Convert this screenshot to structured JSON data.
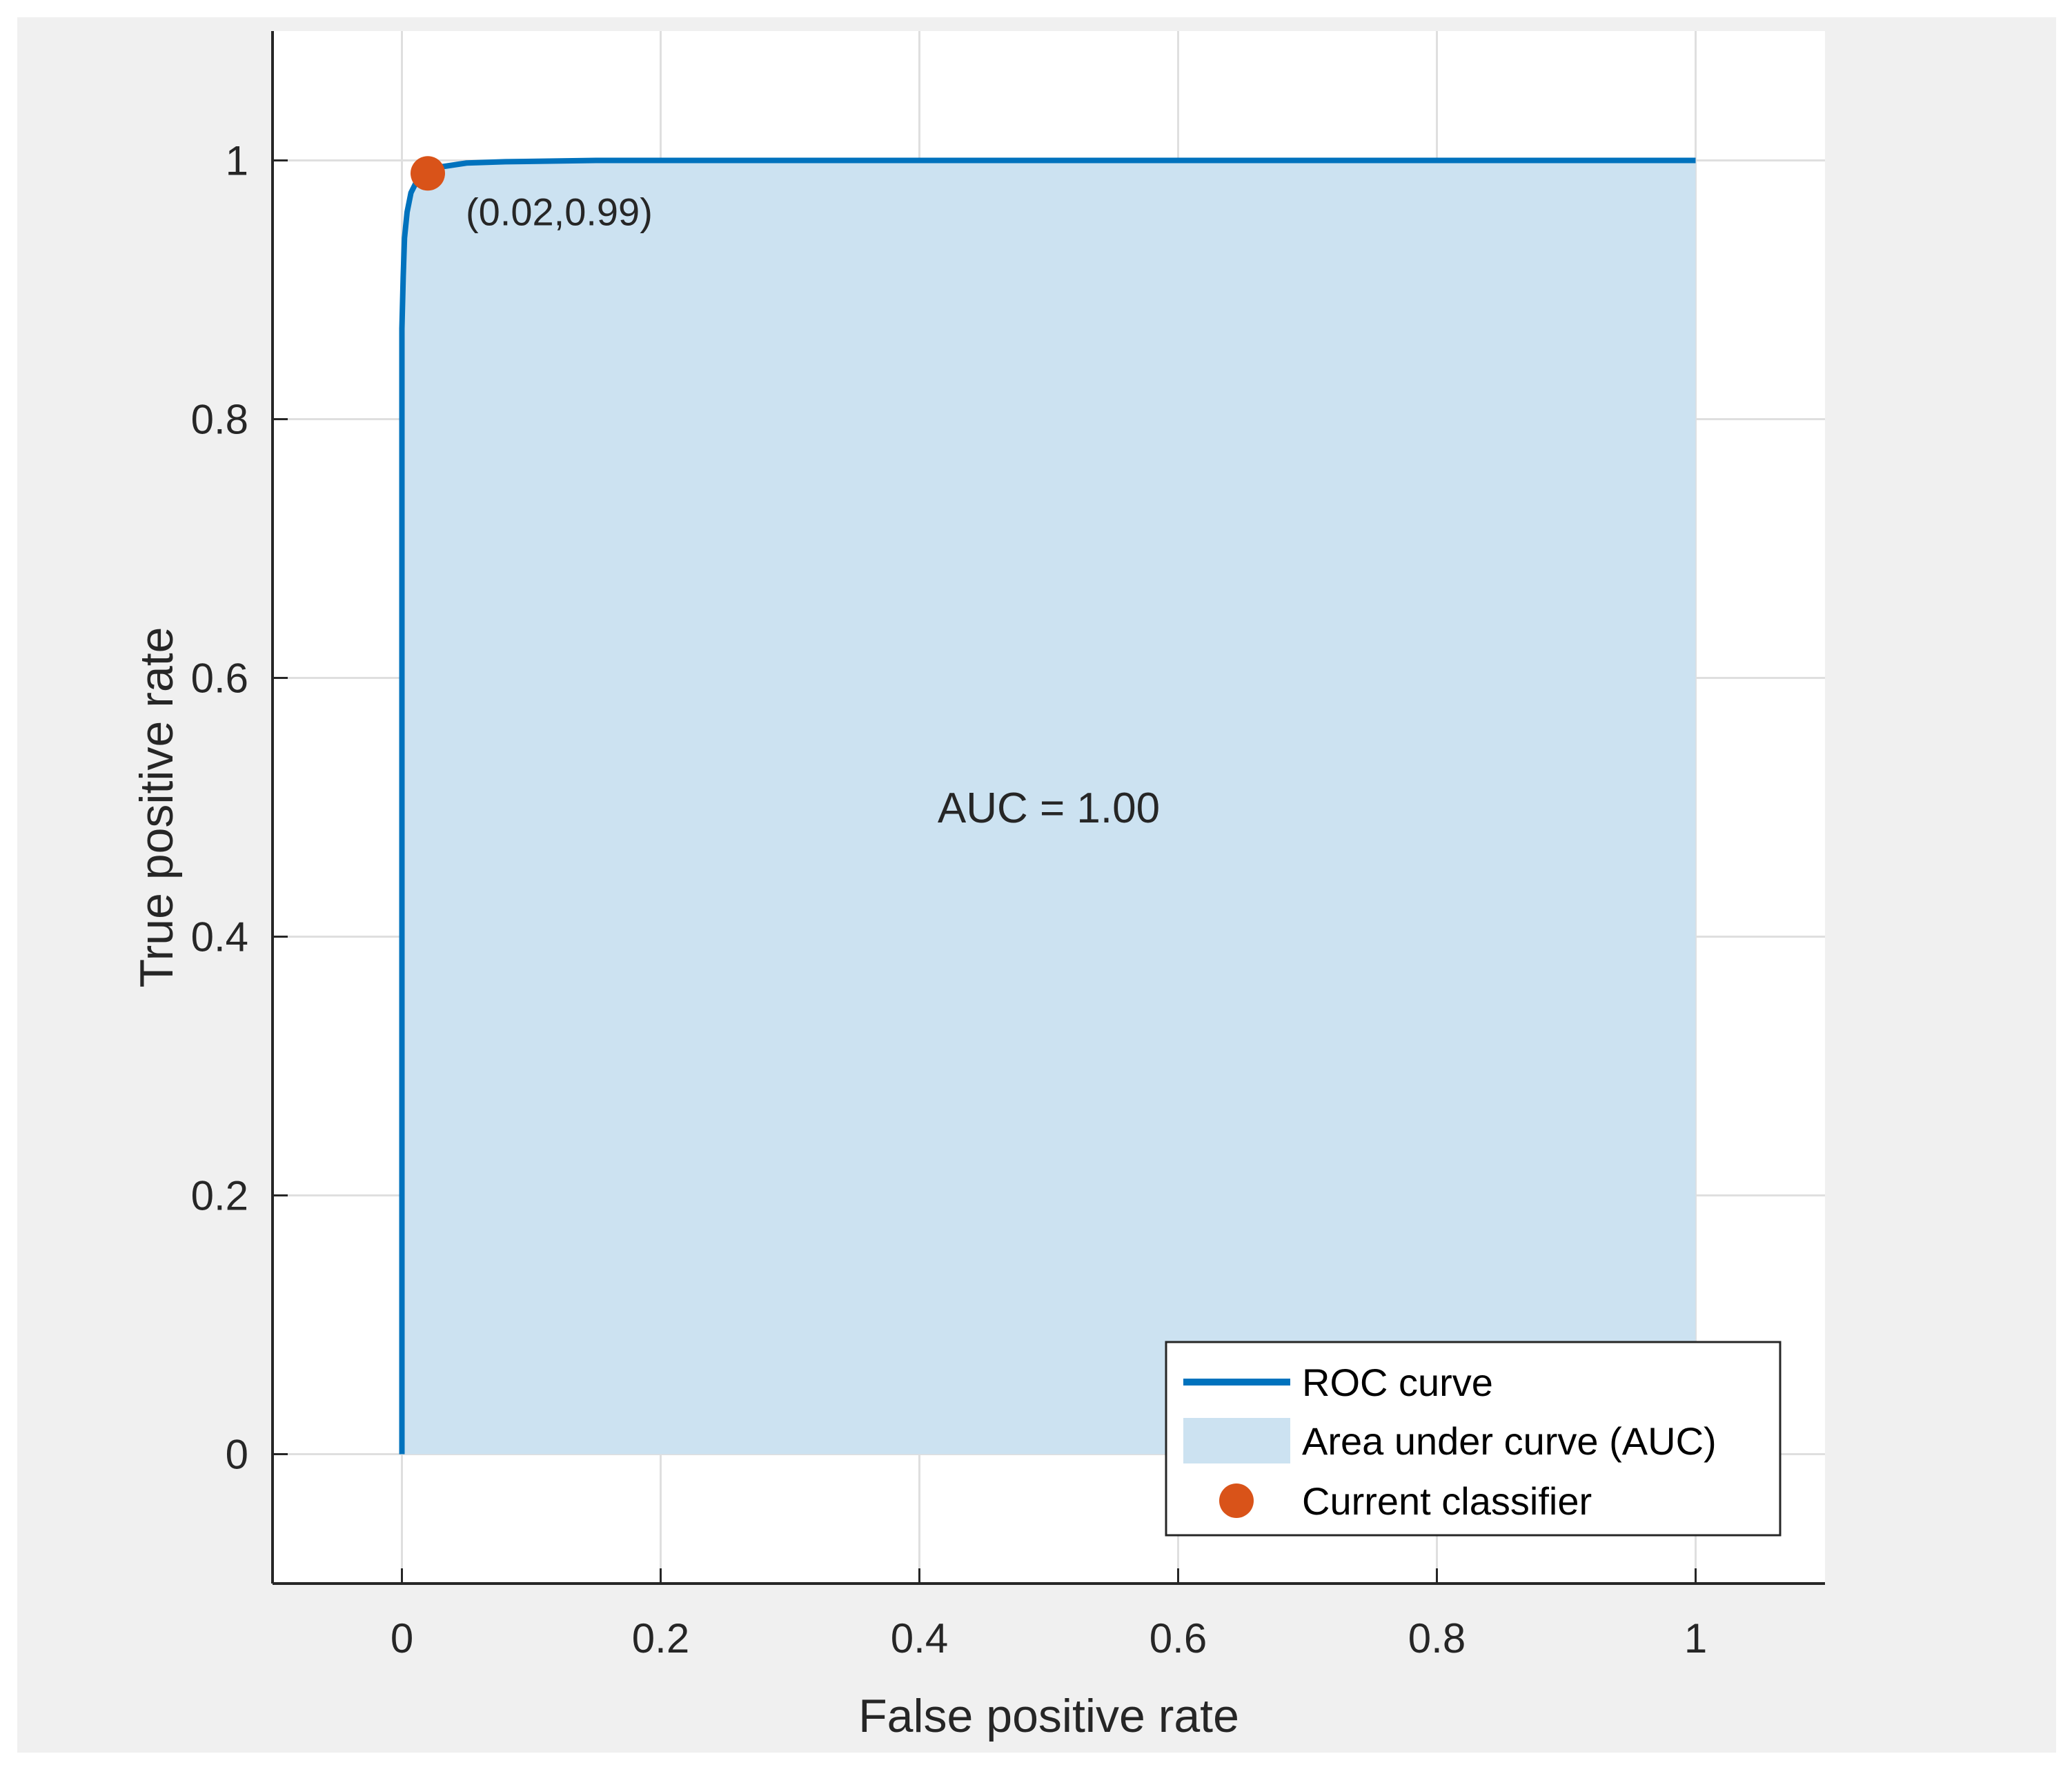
{
  "chart_data": {
    "type": "line",
    "xlabel": "False positive rate",
    "ylabel": "True positive rate",
    "xlim": [
      -0.1,
      1.1
    ],
    "ylim": [
      -0.1,
      1.1
    ],
    "xticks": [
      "0",
      "0.2",
      "0.4",
      "0.6",
      "0.8",
      "1"
    ],
    "yticks": [
      "0",
      "0.2",
      "0.4",
      "0.6",
      "0.8",
      "1"
    ],
    "grid": true,
    "series": [
      {
        "name": "ROC curve",
        "x": [
          0,
          0,
          0.001,
          0.002,
          0.004,
          0.007,
          0.012,
          0.02,
          0.03,
          0.05,
          0.08,
          0.15,
          1.0
        ],
        "y": [
          0,
          0.87,
          0.91,
          0.94,
          0.96,
          0.975,
          0.985,
          0.99,
          0.995,
          0.998,
          0.999,
          1.0,
          1.0
        ],
        "color": "#0072bd"
      }
    ],
    "area": {
      "name": "Area under curve (AUC)",
      "color": "#cce2f1"
    },
    "current_classifier": {
      "name": "Current classifier",
      "x": 0.02,
      "y": 0.99,
      "label": "(0.02,0.99)",
      "color": "#d95319"
    },
    "annotation": "AUC = 1.00",
    "legend": {
      "position": "bottom-right",
      "entries": [
        "ROC curve",
        "Area under curve (AUC)",
        "Current classifier"
      ]
    }
  }
}
